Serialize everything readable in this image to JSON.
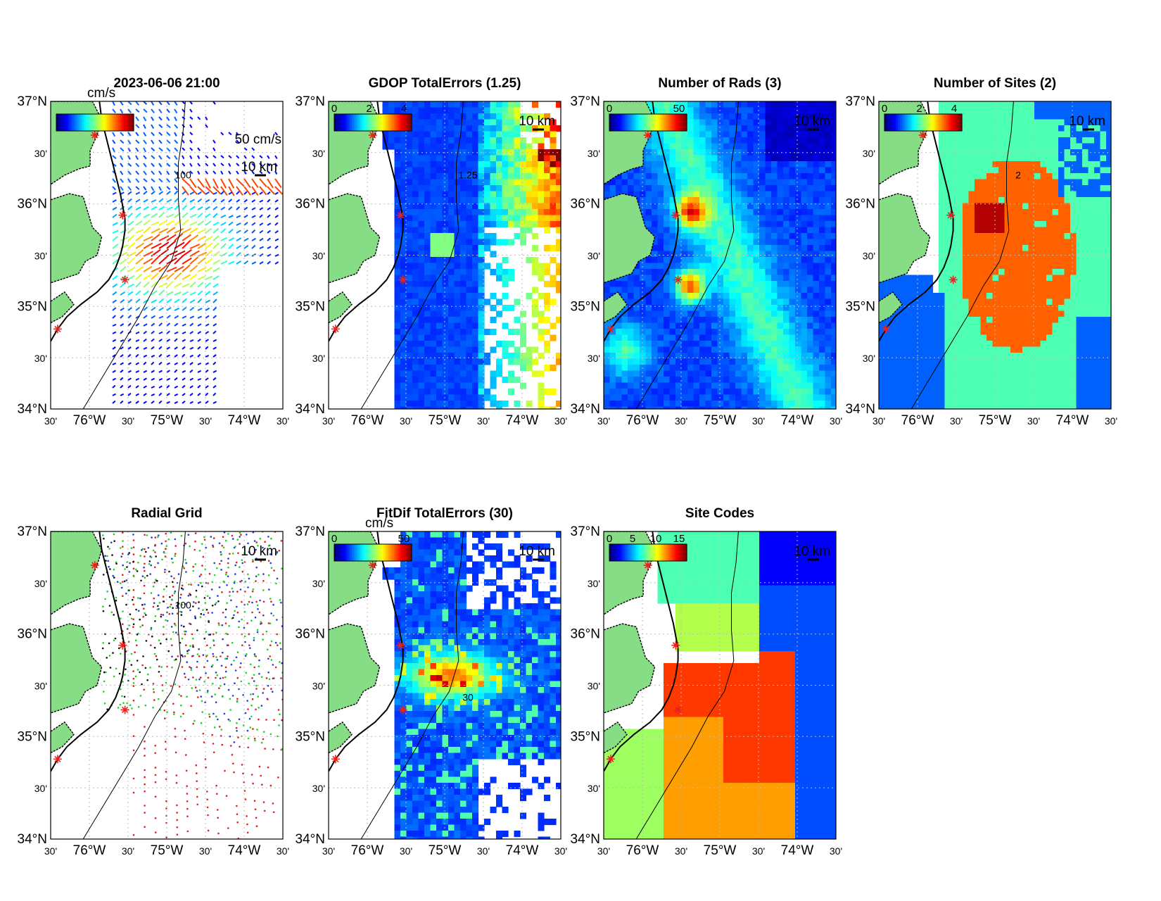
{
  "figure_title": "2023-06-06 21:00",
  "colors": {
    "land": "#86dd86",
    "ocean": "#ffffff",
    "coast": "#000000",
    "site_marker": "#e8221c",
    "grid": "#bbbbbb"
  },
  "axis_labels": {
    "lat": [
      "37°N",
      "30'",
      "36°N",
      "30'",
      "35°N",
      "30'",
      "34°N"
    ],
    "lon": [
      "30'",
      "76°W",
      "30'",
      "75°W",
      "30'",
      "74°W",
      "30'"
    ]
  },
  "scale_bar_label": "10 km",
  "panels": [
    {
      "key": "vectors",
      "title": "2023-06-06 21:00",
      "colorbar_unit": "cm/s",
      "colorbar_ticks": [],
      "vector_scale_label": "50 cm/s",
      "contour_label": "100",
      "field": "vectors"
    },
    {
      "key": "gdop",
      "title": "GDOP TotalErrors (1.25)",
      "colorbar_unit": "",
      "colorbar_ticks": [
        "0",
        "2",
        "4"
      ],
      "contour_label": "1.25",
      "field": "gdop"
    },
    {
      "key": "nrads",
      "title": "Number of Rads (3)",
      "colorbar_unit": "",
      "colorbar_ticks": [
        "0",
        "50"
      ],
      "contour_label": "",
      "field": "nrads"
    },
    {
      "key": "nsites",
      "title": "Number of Sites (2)",
      "colorbar_unit": "",
      "colorbar_ticks": [
        "0",
        "2",
        "4"
      ],
      "contour_label": "2",
      "field": "nsites"
    },
    {
      "key": "radgrid",
      "title": "Radial Grid",
      "colorbar_unit": "",
      "colorbar_ticks": [],
      "contour_label": "100",
      "field": "radgrid"
    },
    {
      "key": "fitdif",
      "title": "FitDif TotalErrors (30)",
      "colorbar_unit": "cm/s",
      "colorbar_ticks": [
        "0",
        "50"
      ],
      "contour_label": "30",
      "field": "fitdif"
    },
    {
      "key": "sitecodes",
      "title": "Site Codes",
      "colorbar_unit": "",
      "colorbar_ticks": [
        "0",
        "5",
        "10",
        "15"
      ],
      "contour_label": "",
      "field": "sitecodes"
    }
  ]
}
